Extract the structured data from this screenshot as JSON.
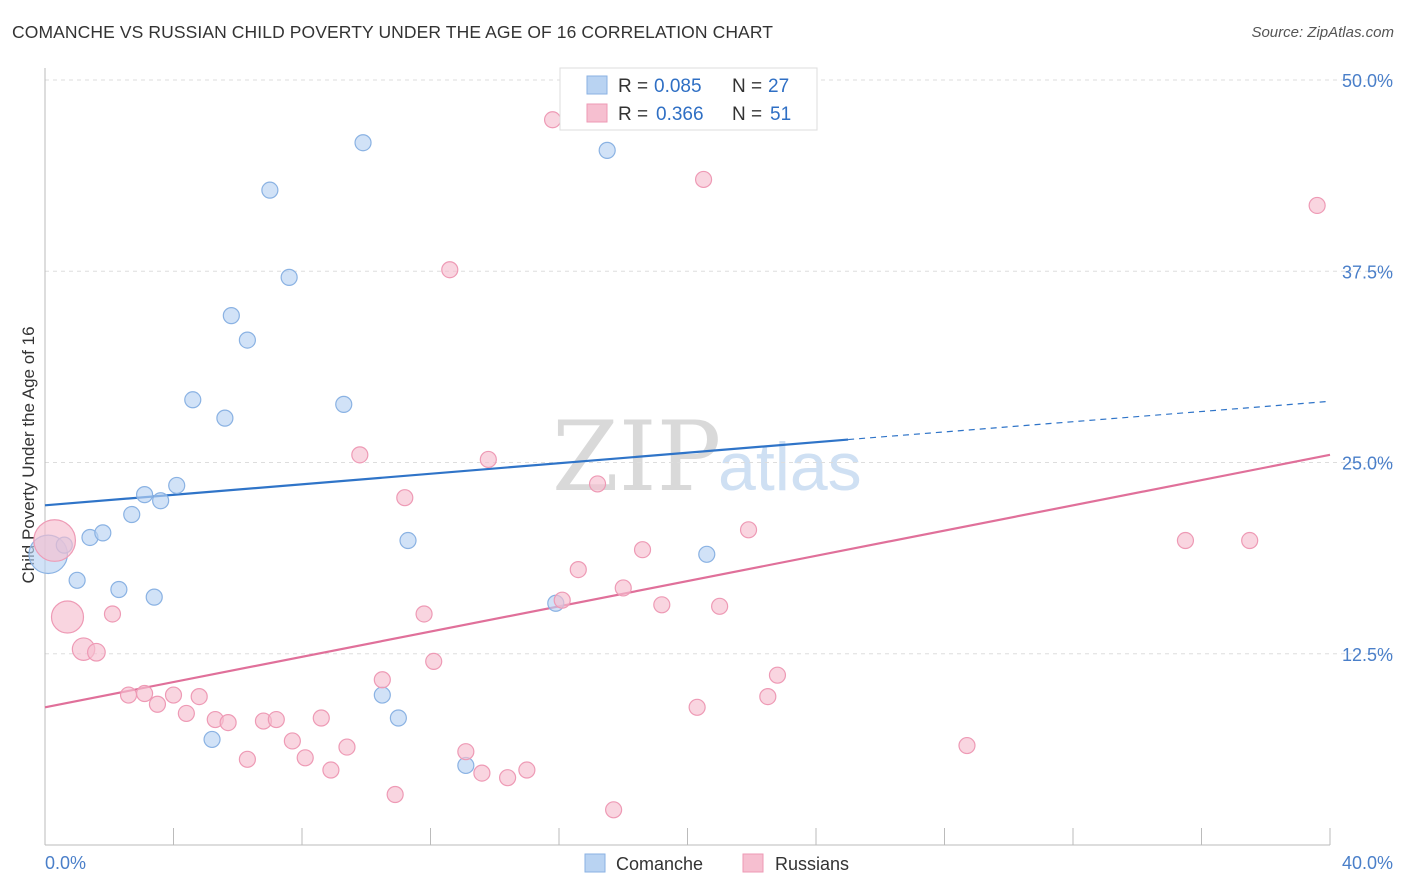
{
  "title": "COMANCHE VS RUSSIAN CHILD POVERTY UNDER THE AGE OF 16 CORRELATION CHART",
  "source": "Source: ZipAtlas.com",
  "watermark": {
    "zip": "ZIP",
    "atlas": "atlas"
  },
  "colors": {
    "comanche_fill": "#b9d3f2",
    "comanche_stroke": "#8ab2e3",
    "comanche_line": "#2f74c8",
    "russians_fill": "#f6bfd0",
    "russians_stroke": "#ee9ab5",
    "russians_line": "#e0709a",
    "grid": "#dddddd",
    "axis": "#bbbbbb"
  },
  "legend": {
    "r_label": "R =",
    "n_label": "N =",
    "comanche": {
      "r": "0.085",
      "n": "27"
    },
    "russians": {
      "r": "0.366",
      "n": "51"
    }
  },
  "bottom_legend": {
    "comanche": "Comanche",
    "russians": "Russians"
  },
  "chart_data": {
    "type": "scatter",
    "ylabel": "Child Poverty Under the Age of 16",
    "xlim": [
      0,
      40
    ],
    "ylim": [
      0,
      50
    ],
    "x_tick_labels": [
      "0.0%",
      "40.0%"
    ],
    "y_ticks": [
      12.5,
      25.0,
      37.5,
      50.0
    ],
    "y_tick_labels": [
      "12.5%",
      "25.0%",
      "37.5%",
      "50.0%"
    ],
    "series": [
      {
        "name": "Comanche",
        "trend": {
          "x0": 0,
          "y0": 22.2,
          "x1": 25,
          "y1": 26.5,
          "dash_to_x": 40,
          "dash_to_y": 29.0
        },
        "points": [
          [
            0.1,
            19.0,
            2.4
          ],
          [
            0.6,
            19.6,
            1
          ],
          [
            1.0,
            17.3,
            1
          ],
          [
            1.4,
            20.1,
            1
          ],
          [
            1.8,
            20.4,
            1
          ],
          [
            2.3,
            16.7,
            1
          ],
          [
            2.7,
            21.6,
            1
          ],
          [
            3.1,
            22.9,
            1
          ],
          [
            3.4,
            16.2,
            1
          ],
          [
            3.6,
            22.5,
            1
          ],
          [
            4.1,
            23.5,
            1
          ],
          [
            4.6,
            29.1,
            1
          ],
          [
            5.2,
            6.9,
            1
          ],
          [
            5.6,
            27.9,
            1
          ],
          [
            5.8,
            34.6,
            1
          ],
          [
            6.3,
            33.0,
            1
          ],
          [
            7.0,
            42.8,
            1
          ],
          [
            7.6,
            37.1,
            1
          ],
          [
            9.3,
            28.8,
            1
          ],
          [
            9.9,
            45.9,
            1
          ],
          [
            10.5,
            9.8,
            1
          ],
          [
            11.0,
            8.3,
            1
          ],
          [
            11.3,
            19.9,
            1
          ],
          [
            13.1,
            5.2,
            1
          ],
          [
            15.9,
            15.8,
            1
          ],
          [
            17.5,
            45.4,
            1
          ],
          [
            20.6,
            19.0,
            1
          ]
        ]
      },
      {
        "name": "Russians",
        "trend": {
          "x0": 0,
          "y0": 9.0,
          "x1": 40,
          "y1": 25.5
        },
        "points": [
          [
            0.3,
            19.9,
            2.6
          ],
          [
            0.7,
            14.9,
            2.0
          ],
          [
            1.2,
            12.8,
            1.4
          ],
          [
            1.6,
            12.6,
            1.1
          ],
          [
            2.1,
            15.1,
            1
          ],
          [
            2.6,
            9.8,
            1
          ],
          [
            3.1,
            9.9,
            1
          ],
          [
            3.5,
            9.2,
            1
          ],
          [
            4.0,
            9.8,
            1
          ],
          [
            4.4,
            8.6,
            1
          ],
          [
            4.8,
            9.7,
            1
          ],
          [
            5.3,
            8.2,
            1
          ],
          [
            5.7,
            8.0,
            1
          ],
          [
            6.3,
            5.6,
            1
          ],
          [
            6.8,
            8.1,
            1
          ],
          [
            7.2,
            8.2,
            1
          ],
          [
            7.7,
            6.8,
            1
          ],
          [
            8.1,
            5.7,
            1
          ],
          [
            8.6,
            8.3,
            1
          ],
          [
            8.9,
            4.9,
            1
          ],
          [
            9.4,
            6.4,
            1
          ],
          [
            9.8,
            25.5,
            1
          ],
          [
            10.5,
            10.8,
            1
          ],
          [
            10.9,
            3.3,
            1
          ],
          [
            11.2,
            22.7,
            1
          ],
          [
            11.8,
            15.1,
            1
          ],
          [
            12.1,
            12.0,
            1
          ],
          [
            12.6,
            37.6,
            1
          ],
          [
            13.1,
            6.1,
            1
          ],
          [
            13.6,
            4.7,
            1
          ],
          [
            13.8,
            25.2,
            1
          ],
          [
            14.4,
            4.4,
            1
          ],
          [
            15.0,
            4.9,
            1
          ],
          [
            15.8,
            47.4,
            1
          ],
          [
            16.1,
            16.0,
            1
          ],
          [
            16.6,
            18.0,
            1
          ],
          [
            17.2,
            23.6,
            1
          ],
          [
            17.7,
            2.3,
            1
          ],
          [
            18.0,
            16.8,
            1
          ],
          [
            18.6,
            19.3,
            1
          ],
          [
            19.2,
            15.7,
            1
          ],
          [
            20.3,
            9.0,
            1
          ],
          [
            20.5,
            43.5,
            1
          ],
          [
            21.0,
            15.6,
            1
          ],
          [
            21.9,
            20.6,
            1
          ],
          [
            22.5,
            9.7,
            1
          ],
          [
            22.8,
            11.1,
            1
          ],
          [
            28.7,
            6.5,
            1
          ],
          [
            35.5,
            19.9,
            1
          ],
          [
            37.5,
            19.9,
            1
          ],
          [
            39.6,
            41.8,
            1
          ]
        ]
      }
    ]
  }
}
